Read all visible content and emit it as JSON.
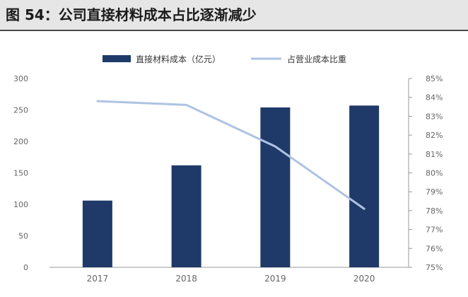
{
  "figure": {
    "title": "图 54：公司直接材料成本占比逐渐减少"
  },
  "chart_data": {
    "type": "bar",
    "categories": [
      "2017",
      "2018",
      "2019",
      "2020"
    ],
    "series": [
      {
        "name": "直接材料成本（亿元）",
        "kind": "bar",
        "axis": "left",
        "color": "#1f3a68",
        "values": [
          106,
          162,
          254,
          257
        ]
      },
      {
        "name": "占营业成本比重",
        "kind": "line",
        "axis": "right",
        "color": "#aec3e3",
        "values": [
          83.8,
          83.6,
          81.4,
          78.1
        ]
      }
    ],
    "y_left": {
      "min": 0,
      "max": 300,
      "ticks": [
        "0",
        "50",
        "100",
        "150",
        "200",
        "250",
        "300"
      ]
    },
    "y_right": {
      "min": 75,
      "max": 85,
      "ticks": [
        "75%",
        "76%",
        "77%",
        "78%",
        "79%",
        "80%",
        "81%",
        "82%",
        "83%",
        "84%",
        "85%"
      ]
    },
    "legend_position": "top",
    "grid": false
  }
}
